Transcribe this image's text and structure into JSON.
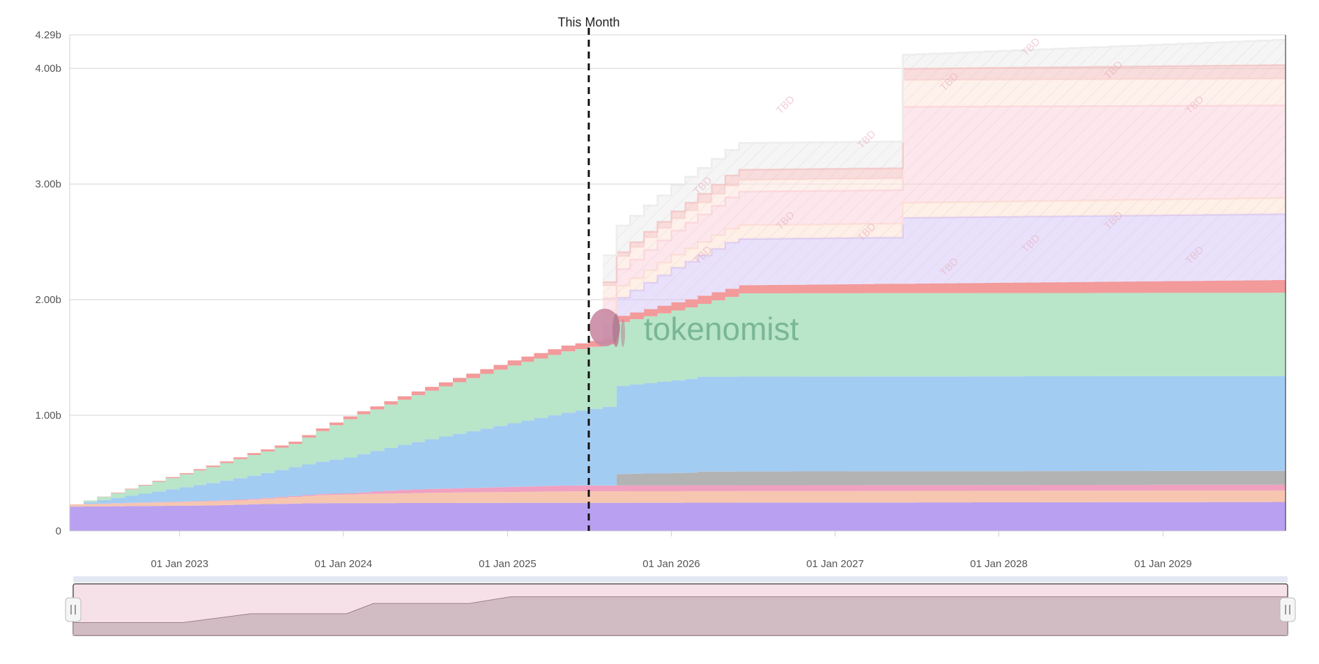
{
  "chart_data": {
    "type": "area",
    "stacked": true,
    "title": "",
    "xlabel": "",
    "ylabel": "",
    "x_range": [
      "2022-05-01",
      "2029-10-01"
    ],
    "ylim": [
      0,
      4.29
    ],
    "y_ticks": [
      {
        "value": 0,
        "label": "0"
      },
      {
        "value": 1.0,
        "label": "1.00b"
      },
      {
        "value": 2.0,
        "label": "2.00b"
      },
      {
        "value": 3.0,
        "label": "3.00b"
      },
      {
        "value": 4.0,
        "label": "4.00b"
      },
      {
        "value": 4.29,
        "label": "4.29b"
      }
    ],
    "x_ticks": [
      {
        "date": "2023-01-01",
        "label": "01 Jan 2023"
      },
      {
        "date": "2024-01-01",
        "label": "01 Jan 2024"
      },
      {
        "date": "2025-01-01",
        "label": "01 Jan 2025"
      },
      {
        "date": "2026-01-01",
        "label": "01 Jan 2026"
      },
      {
        "date": "2027-01-01",
        "label": "01 Jan 2027"
      },
      {
        "date": "2028-01-01",
        "label": "01 Jan 2028"
      },
      {
        "date": "2029-01-01",
        "label": "01 Jan 2029"
      }
    ],
    "grid": true,
    "marker": {
      "date": "2025-07-01",
      "label": "This Month"
    },
    "watermark": "tokenomist",
    "tbd_label": "TBD",
    "series": [
      {
        "color": "#b9a0f0",
        "points": [
          [
            "2022-05-01",
            0.21
          ],
          [
            "2023-03-01",
            0.22
          ],
          [
            "2023-06-01",
            0.23
          ],
          [
            "2023-11-01",
            0.24
          ],
          [
            "2029-10-01",
            0.25
          ]
        ]
      },
      {
        "color": "#f6c6b0",
        "points": [
          [
            "2022-05-01",
            0.02
          ],
          [
            "2023-06-01",
            0.04
          ],
          [
            "2023-11-01",
            0.07
          ],
          [
            "2024-03-01",
            0.08
          ],
          [
            "2024-08-01",
            0.09
          ],
          [
            "2025-05-01",
            0.1
          ],
          [
            "2029-10-01",
            0.1
          ]
        ]
      },
      {
        "color": "#f0a0c0",
        "points": [
          [
            "2022-05-01",
            0.0
          ],
          [
            "2024-01-01",
            0.01
          ],
          [
            "2024-05-01",
            0.03
          ],
          [
            "2025-05-01",
            0.05
          ],
          [
            "2029-10-01",
            0.05
          ]
        ]
      },
      {
        "color": "#b3b3b3",
        "points": [
          [
            "2022-05-01",
            0.0
          ],
          [
            "2025-08-01",
            0.0
          ],
          [
            "2025-09-01",
            0.1
          ],
          [
            "2026-02-01",
            0.11
          ],
          [
            "2026-03-01",
            0.12
          ],
          [
            "2029-10-01",
            0.12
          ]
        ]
      },
      {
        "color": "#a3ccf3",
        "points": [
          [
            "2022-05-01",
            0.0
          ],
          [
            "2023-06-01",
            0.2
          ],
          [
            "2023-09-01",
            0.25
          ],
          [
            "2024-01-01",
            0.31
          ],
          [
            "2024-07-01",
            0.43
          ],
          [
            "2025-01-01",
            0.55
          ],
          [
            "2025-05-01",
            0.63
          ],
          [
            "2025-08-01",
            0.68
          ],
          [
            "2025-09-01",
            0.76
          ],
          [
            "2026-03-01",
            0.82
          ],
          [
            "2026-06-01",
            0.82
          ],
          [
            "2029-10-01",
            0.82
          ]
        ]
      },
      {
        "color": "#b9e5c9",
        "points": [
          [
            "2022-05-01",
            0.0
          ],
          [
            "2023-06-01",
            0.18
          ],
          [
            "2023-09-01",
            0.2
          ],
          [
            "2024-01-01",
            0.33
          ],
          [
            "2024-07-01",
            0.42
          ],
          [
            "2025-01-01",
            0.5
          ],
          [
            "2025-05-01",
            0.53
          ],
          [
            "2025-08-01",
            0.54
          ],
          [
            "2026-03-01",
            0.63
          ],
          [
            "2026-06-01",
            0.72
          ],
          [
            "2029-10-01",
            0.72
          ]
        ]
      },
      {
        "color": "#f39a9a",
        "points": [
          [
            "2022-05-01",
            0.0
          ],
          [
            "2024-05-01",
            0.03
          ],
          [
            "2025-05-01",
            0.05
          ],
          [
            "2025-08-01",
            0.05
          ],
          [
            "2026-01-01",
            0.07
          ],
          [
            "2026-06-01",
            0.07
          ],
          [
            "2029-10-01",
            0.11
          ]
        ]
      }
    ],
    "future_series": [
      {
        "color": "#d7c8f7",
        "points": [
          [
            "2025-08-01",
            0.12
          ],
          [
            "2026-01-01",
            0.3
          ],
          [
            "2026-05-01",
            0.4
          ],
          [
            "2027-05-01",
            0.4
          ],
          [
            "2027-06-01",
            0.57
          ],
          [
            "2029-10-01",
            0.57
          ]
        ]
      },
      {
        "color": "#fde2d4",
        "points": [
          [
            "2025-08-01",
            0.1
          ],
          [
            "2026-05-01",
            0.12
          ],
          [
            "2027-05-01",
            0.12
          ],
          [
            "2027-06-01",
            0.13
          ],
          [
            "2029-10-01",
            0.14
          ]
        ]
      },
      {
        "color": "#fbd3dc",
        "points": [
          [
            "2025-08-01",
            0.13
          ],
          [
            "2026-05-01",
            0.27
          ],
          [
            "2026-06-01",
            0.29
          ],
          [
            "2027-05-01",
            0.29
          ],
          [
            "2027-06-01",
            0.83
          ],
          [
            "2029-10-01",
            0.8
          ]
        ]
      },
      {
        "color": "#fde6dd",
        "points": [
          [
            "2025-08-01",
            0.11
          ],
          [
            "2026-05-01",
            0.1
          ],
          [
            "2027-05-01",
            0.1
          ],
          [
            "2027-06-01",
            0.23
          ],
          [
            "2029-10-01",
            0.23
          ]
        ]
      },
      {
        "color": "#f4c0c0",
        "points": [
          [
            "2025-08-01",
            0.03
          ],
          [
            "2026-05-01",
            0.09
          ],
          [
            "2027-05-01",
            0.09
          ],
          [
            "2027-06-01",
            0.1
          ],
          [
            "2029-10-01",
            0.12
          ]
        ]
      },
      {
        "color": "#ececec",
        "points": [
          [
            "2025-08-01",
            0.23
          ],
          [
            "2026-05-01",
            0.22
          ],
          [
            "2026-06-01",
            0.23
          ],
          [
            "2027-05-01",
            0.23
          ],
          [
            "2027-06-01",
            0.12
          ],
          [
            "2029-10-01",
            0.22
          ]
        ]
      }
    ],
    "navigator": {
      "fill": "#f7e1e8",
      "series_fill": "#d2bcc3"
    }
  }
}
